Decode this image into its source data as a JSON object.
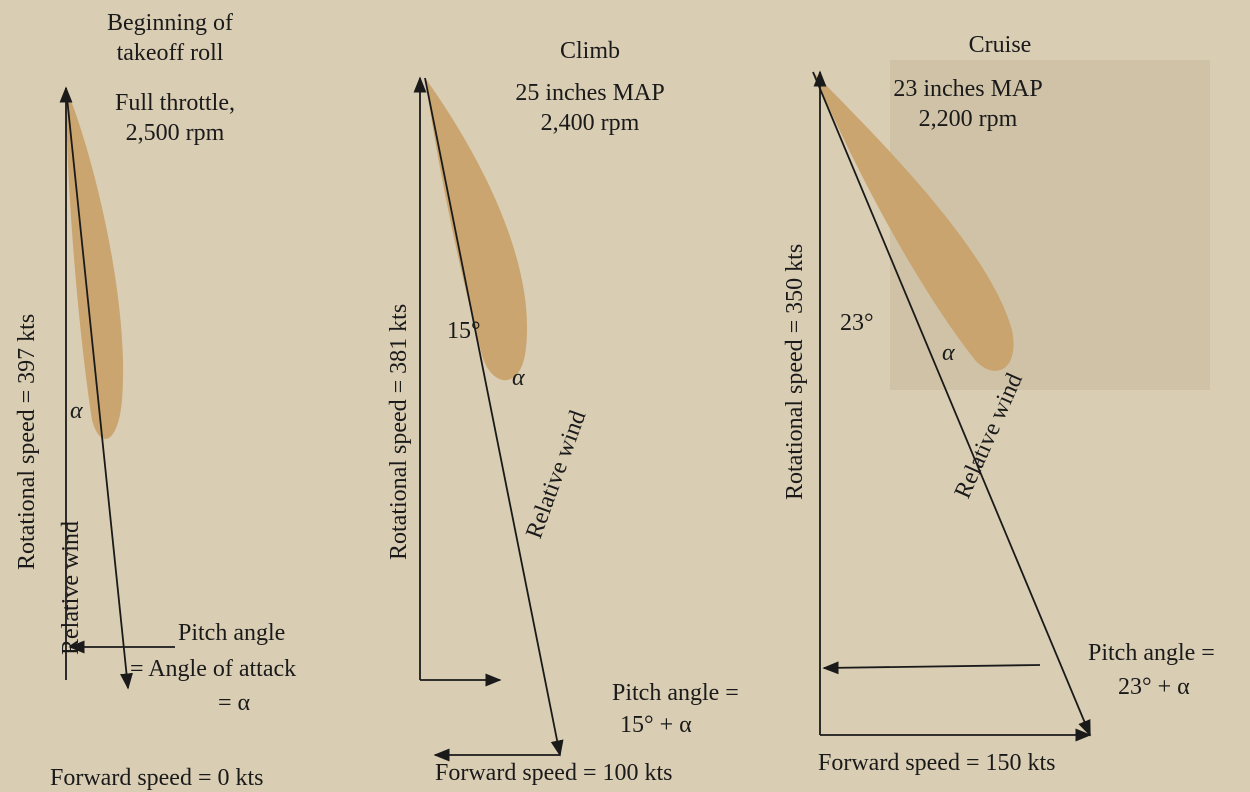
{
  "panels": [
    {
      "title": [
        "Beginning of",
        "takeoff roll"
      ],
      "settings": [
        "Full throttle,",
        "2,500 rpm"
      ],
      "rotational_speed": "Rotational speed = 397 kts",
      "relative_wind": "Relative wind",
      "alpha": "α",
      "pitch_angle": [
        "Pitch angle",
        "= Angle of attack",
        "= α"
      ],
      "forward_speed": "Forward speed = 0 kts"
    },
    {
      "title": [
        "Climb"
      ],
      "settings": [
        "25 inches MAP",
        "2,400 rpm"
      ],
      "rotational_speed": "Rotational speed = 381 kts",
      "angle": "15°",
      "relative_wind": "Relative wind",
      "alpha": "α",
      "pitch_angle": [
        "Pitch angle =",
        "15° + α"
      ],
      "forward_speed": "Forward speed = 100 kts"
    },
    {
      "title": [
        "Cruise"
      ],
      "settings": [
        "23 inches MAP",
        "2,200 rpm"
      ],
      "rotational_speed": "Rotational speed = 350 kts",
      "angle": "23°",
      "relative_wind": "Relative wind",
      "alpha": "α",
      "pitch_angle": [
        "Pitch angle =",
        "23° + α"
      ],
      "forward_speed": "Forward speed = 150 kts"
    }
  ]
}
